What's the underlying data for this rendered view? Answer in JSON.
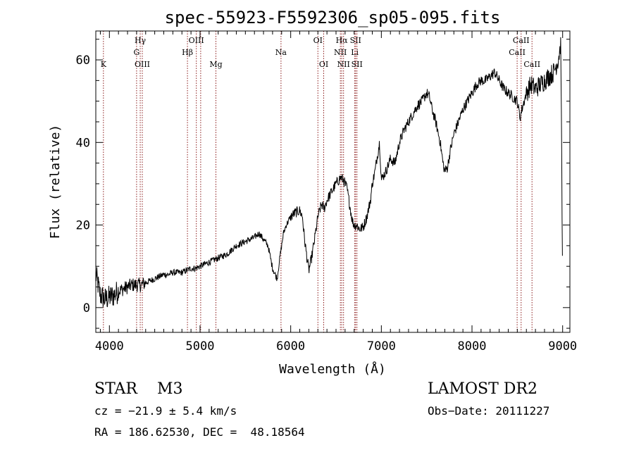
{
  "chart_data": {
    "type": "line",
    "title": "spec-55923-F5592306_sp05-095.fits",
    "xlabel": "Wavelength (Å)",
    "ylabel": "Flux (relative)",
    "xlim": [
      3850,
      9080
    ],
    "ylim": [
      -6,
      67
    ],
    "xticks": [
      4000,
      5000,
      6000,
      7000,
      8000,
      9000
    ],
    "xtick_labels": [
      "4000",
      "5000",
      "6000",
      "7000",
      "8000",
      "9000"
    ],
    "yticks": [
      0,
      20,
      40,
      60
    ],
    "ytick_labels": [
      "0",
      "20",
      "40",
      "60"
    ],
    "grid": false,
    "line_color": "#000000",
    "marker_color": "#8b1a1a",
    "series": [
      {
        "x": [
          3850,
          3900,
          3950,
          4000,
          4050,
          4100,
          4150,
          4200,
          4250,
          4300,
          4350,
          4400,
          4450,
          4500,
          4550,
          4600,
          4650,
          4700,
          4750,
          4800,
          4850,
          4900,
          4950,
          5000,
          5050,
          5100,
          5150,
          5200,
          5250,
          5300,
          5350,
          5400,
          5450,
          5500,
          5550,
          5600,
          5650,
          5700,
          5750,
          5800,
          5850,
          5880,
          5900,
          5920,
          5950,
          6000,
          6050,
          6100,
          6130,
          6150,
          6180,
          6200,
          6230,
          6260,
          6280,
          6300,
          6320,
          6340,
          6370,
          6400,
          6450,
          6500,
          6550,
          6580,
          6600,
          6620,
          6650,
          6680,
          6700,
          6730,
          6760,
          6800,
          6840,
          6880,
          6900,
          6930,
          6950,
          6980,
          7000,
          7050,
          7100,
          7150,
          7200,
          7250,
          7300,
          7350,
          7400,
          7450,
          7500,
          7530,
          7560,
          7600,
          7650,
          7680,
          7700,
          7730,
          7760,
          7800,
          7850,
          7900,
          7950,
          8000,
          8050,
          8100,
          8150,
          8200,
          8250,
          8300,
          8350,
          8400,
          8450,
          8500,
          8530,
          8550,
          8600,
          8650,
          8700,
          8750,
          8800,
          8850,
          8900,
          8950,
          8980,
          9000
        ],
        "y": [
          8,
          3,
          2,
          2.5,
          3,
          4,
          4.5,
          5,
          5.5,
          5.5,
          5.5,
          6,
          6.5,
          7,
          7.5,
          8,
          8,
          8.5,
          8.5,
          8.5,
          9,
          9.5,
          9.5,
          10,
          10.5,
          11,
          11.5,
          12,
          12.5,
          13,
          14,
          15,
          15.5,
          16,
          16.5,
          17,
          18,
          16.5,
          15,
          9.5,
          7,
          12,
          15,
          18,
          20,
          22,
          23,
          23.5,
          22,
          17,
          12,
          9,
          12,
          16,
          19,
          22,
          23.5,
          25,
          24,
          26,
          28,
          30,
          31.5,
          31,
          30,
          29,
          25,
          21,
          20,
          20,
          19,
          19.5,
          22,
          26,
          30,
          33,
          36,
          40,
          31,
          33,
          36,
          35,
          40,
          43,
          45,
          47,
          49,
          50,
          52,
          51,
          48,
          45,
          40,
          35,
          33,
          34,
          38,
          42,
          45,
          48,
          50,
          52,
          54,
          55,
          55,
          56,
          57,
          55,
          53,
          52,
          51,
          50,
          46,
          48,
          52,
          54,
          53,
          54,
          55,
          56,
          57,
          60,
          64,
          5
        ]
      }
    ],
    "lines": [
      {
        "x": 3934,
        "labels": [
          "K"
        ],
        "rows": [
          2
        ]
      },
      {
        "x": 4300,
        "labels": [
          "G"
        ],
        "rows": [
          1
        ]
      },
      {
        "x": 4340,
        "labels": [
          "Hγ"
        ],
        "rows": [
          0
        ]
      },
      {
        "x": 4363,
        "labels": [
          "OIII"
        ],
        "rows": [
          2
        ]
      },
      {
        "x": 4861,
        "labels": [
          "Hβ"
        ],
        "rows": [
          1
        ]
      },
      {
        "x": 4959,
        "labels": [
          "OIII"
        ],
        "rows": [
          0
        ]
      },
      {
        "x": 5007,
        "labels": [],
        "rows": []
      },
      {
        "x": 5175,
        "labels": [
          "Mg"
        ],
        "rows": [
          2
        ]
      },
      {
        "x": 5893,
        "labels": [
          "Na"
        ],
        "rows": [
          1
        ]
      },
      {
        "x": 6300,
        "labels": [
          "OI"
        ],
        "rows": [
          0
        ]
      },
      {
        "x": 6364,
        "labels": [
          "OI"
        ],
        "rows": [
          2
        ]
      },
      {
        "x": 6548,
        "labels": [
          "NII"
        ],
        "rows": [
          1
        ]
      },
      {
        "x": 6563,
        "labels": [
          "Hα"
        ],
        "rows": [
          0
        ]
      },
      {
        "x": 6583,
        "labels": [
          "NII"
        ],
        "rows": [
          2
        ]
      },
      {
        "x": 6707,
        "labels": [
          "Li"
        ],
        "rows": [
          1
        ]
      },
      {
        "x": 6716,
        "labels": [
          "SII"
        ],
        "rows": [
          0
        ]
      },
      {
        "x": 6731,
        "labels": [
          "SII"
        ],
        "rows": [
          2
        ]
      },
      {
        "x": 8498,
        "labels": [
          "CaII"
        ],
        "rows": [
          1
        ]
      },
      {
        "x": 8542,
        "labels": [
          "CaII"
        ],
        "rows": [
          0
        ]
      },
      {
        "x": 8662,
        "labels": [
          "CaII"
        ],
        "rows": [
          2
        ]
      }
    ]
  },
  "footer": {
    "object": "STAR    M3",
    "survey": "LAMOST DR2",
    "cz": "cz = −21.9 ± 5.4 km/s",
    "obs_date": "Obs−Date: 20111227",
    "coords": "RA = 186.62530, DEC =  48.18564"
  }
}
